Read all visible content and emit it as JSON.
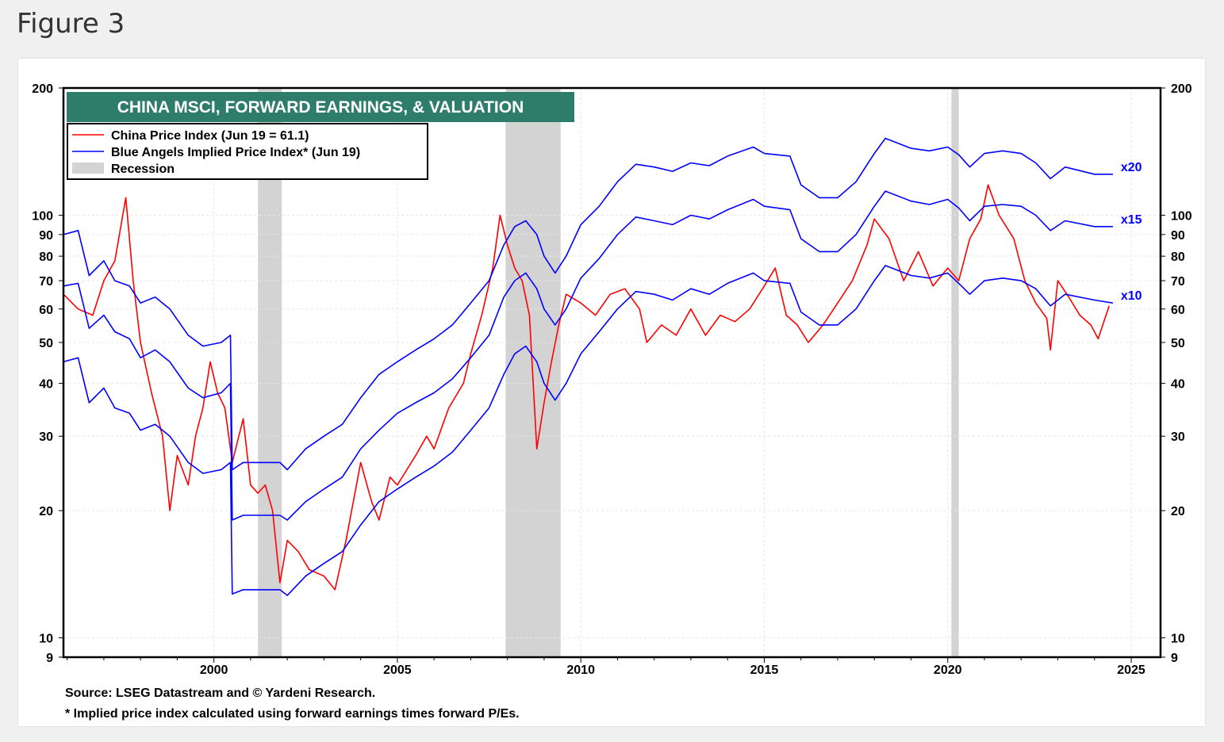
{
  "figure_label": "Figure 3",
  "chart_data": {
    "type": "line",
    "title": "CHINA MSCI, FORWARD EARNINGS, & VALUATION",
    "y_scale": "log",
    "ylim": [
      9,
      200
    ],
    "xlim": [
      1995.9,
      2025.8
    ],
    "y_ticks": [
      200,
      100,
      90,
      80,
      70,
      60,
      50,
      40,
      30,
      20,
      10,
      9
    ],
    "x_ticks": [
      2000,
      2005,
      2010,
      2015,
      2020,
      2025
    ],
    "legend": [
      {
        "label": "China Price Index (Jun 19 = 61.1)",
        "color": "#ff0000",
        "kind": "line"
      },
      {
        "label": "Blue Angels Implied Price Index* (Jun 19)",
        "color": "#0000ff",
        "kind": "line"
      },
      {
        "label": "Recession",
        "color": "#d3d3d3",
        "kind": "band"
      }
    ],
    "recessions": [
      [
        2001.2,
        2001.85
      ],
      [
        2007.95,
        2009.45
      ],
      [
        2020.1,
        2020.3
      ]
    ],
    "series": [
      {
        "name": "China Price Index",
        "color": "#ff0000",
        "points": [
          [
            1995.9,
            65
          ],
          [
            1996.3,
            60
          ],
          [
            1996.7,
            58
          ],
          [
            1997.0,
            70
          ],
          [
            1997.3,
            78
          ],
          [
            1997.6,
            110
          ],
          [
            1997.8,
            70
          ],
          [
            1998.0,
            50
          ],
          [
            1998.3,
            38
          ],
          [
            1998.6,
            30
          ],
          [
            1998.8,
            20
          ],
          [
            1999.0,
            27
          ],
          [
            1999.3,
            23
          ],
          [
            1999.5,
            30
          ],
          [
            1999.7,
            35
          ],
          [
            1999.9,
            45
          ],
          [
            2000.1,
            38
          ],
          [
            2000.3,
            35
          ],
          [
            2000.5,
            26
          ],
          [
            2000.8,
            33
          ],
          [
            2001.0,
            23
          ],
          [
            2001.2,
            22
          ],
          [
            2001.4,
            23
          ],
          [
            2001.6,
            20
          ],
          [
            2001.8,
            13.5
          ],
          [
            2002.0,
            17
          ],
          [
            2002.3,
            16
          ],
          [
            2002.6,
            14.5
          ],
          [
            2003.0,
            14
          ],
          [
            2003.3,
            13
          ],
          [
            2003.6,
            17
          ],
          [
            2004.0,
            26
          ],
          [
            2004.3,
            21
          ],
          [
            2004.5,
            19
          ],
          [
            2004.8,
            24
          ],
          [
            2005.0,
            23
          ],
          [
            2005.5,
            27
          ],
          [
            2005.8,
            30
          ],
          [
            2006.0,
            28
          ],
          [
            2006.4,
            35
          ],
          [
            2006.8,
            40
          ],
          [
            2007.0,
            47
          ],
          [
            2007.3,
            58
          ],
          [
            2007.6,
            75
          ],
          [
            2007.8,
            100
          ],
          [
            2008.0,
            85
          ],
          [
            2008.2,
            75
          ],
          [
            2008.4,
            70
          ],
          [
            2008.6,
            58
          ],
          [
            2008.8,
            28
          ],
          [
            2009.0,
            36
          ],
          [
            2009.2,
            45
          ],
          [
            2009.4,
            55
          ],
          [
            2009.6,
            65
          ],
          [
            2010.0,
            62
          ],
          [
            2010.4,
            58
          ],
          [
            2010.8,
            65
          ],
          [
            2011.2,
            67
          ],
          [
            2011.6,
            60
          ],
          [
            2011.8,
            50
          ],
          [
            2012.2,
            55
          ],
          [
            2012.6,
            52
          ],
          [
            2013.0,
            60
          ],
          [
            2013.4,
            52
          ],
          [
            2013.8,
            58
          ],
          [
            2014.2,
            56
          ],
          [
            2014.6,
            60
          ],
          [
            2015.0,
            68
          ],
          [
            2015.3,
            75
          ],
          [
            2015.6,
            58
          ],
          [
            2015.9,
            55
          ],
          [
            2016.2,
            50
          ],
          [
            2016.6,
            55
          ],
          [
            2017.0,
            62
          ],
          [
            2017.4,
            70
          ],
          [
            2017.8,
            85
          ],
          [
            2018.0,
            98
          ],
          [
            2018.4,
            88
          ],
          [
            2018.8,
            70
          ],
          [
            2019.2,
            82
          ],
          [
            2019.6,
            68
          ],
          [
            2020.0,
            75
          ],
          [
            2020.3,
            70
          ],
          [
            2020.6,
            88
          ],
          [
            2020.9,
            98
          ],
          [
            2021.1,
            118
          ],
          [
            2021.4,
            100
          ],
          [
            2021.8,
            88
          ],
          [
            2022.1,
            70
          ],
          [
            2022.4,
            62
          ],
          [
            2022.7,
            57
          ],
          [
            2022.8,
            48
          ],
          [
            2023.0,
            70
          ],
          [
            2023.3,
            64
          ],
          [
            2023.6,
            58
          ],
          [
            2023.9,
            55
          ],
          [
            2024.1,
            51
          ],
          [
            2024.4,
            61
          ]
        ]
      },
      {
        "name": "Blue Angels x20",
        "color": "#0000ff",
        "label": "x20",
        "points": [
          [
            1995.9,
            90
          ],
          [
            1996.3,
            92
          ],
          [
            1996.6,
            72
          ],
          [
            1997.0,
            78
          ],
          [
            1997.3,
            70
          ],
          [
            1997.7,
            68
          ],
          [
            1998.0,
            62
          ],
          [
            1998.4,
            64
          ],
          [
            1998.8,
            60
          ],
          [
            1999.3,
            52
          ],
          [
            1999.7,
            49
          ],
          [
            2000.2,
            50
          ],
          [
            2000.45,
            52
          ],
          [
            2000.5,
            25
          ],
          [
            2000.8,
            26
          ],
          [
            2001.0,
            26
          ],
          [
            2001.8,
            26
          ],
          [
            2002.0,
            25
          ],
          [
            2002.5,
            28
          ],
          [
            2003.0,
            30
          ],
          [
            2003.5,
            32
          ],
          [
            2004.0,
            37
          ],
          [
            2004.5,
            42
          ],
          [
            2005.0,
            45
          ],
          [
            2005.5,
            48
          ],
          [
            2006.0,
            51
          ],
          [
            2006.5,
            55
          ],
          [
            2007.0,
            62
          ],
          [
            2007.5,
            70
          ],
          [
            2007.9,
            85
          ],
          [
            2008.2,
            94
          ],
          [
            2008.5,
            97
          ],
          [
            2008.8,
            90
          ],
          [
            2009.0,
            80
          ],
          [
            2009.3,
            73
          ],
          [
            2009.6,
            80
          ],
          [
            2010.0,
            95
          ],
          [
            2010.5,
            105
          ],
          [
            2011.0,
            120
          ],
          [
            2011.5,
            132
          ],
          [
            2012.0,
            130
          ],
          [
            2012.5,
            127
          ],
          [
            2013.0,
            133
          ],
          [
            2013.5,
            131
          ],
          [
            2014.0,
            138
          ],
          [
            2014.7,
            145
          ],
          [
            2015.0,
            140
          ],
          [
            2015.7,
            138
          ],
          [
            2016.0,
            118
          ],
          [
            2016.5,
            110
          ],
          [
            2017.0,
            110
          ],
          [
            2017.5,
            120
          ],
          [
            2018.0,
            140
          ],
          [
            2018.3,
            152
          ],
          [
            2019.0,
            144
          ],
          [
            2019.5,
            142
          ],
          [
            2020.0,
            145
          ],
          [
            2020.3,
            139
          ],
          [
            2020.6,
            130
          ],
          [
            2021.0,
            140
          ],
          [
            2021.5,
            142
          ],
          [
            2022.0,
            140
          ],
          [
            2022.4,
            133
          ],
          [
            2022.8,
            122
          ],
          [
            2023.2,
            130
          ],
          [
            2024.0,
            125
          ],
          [
            2024.5,
            125
          ]
        ]
      },
      {
        "name": "Blue Angels x15",
        "color": "#0000ff",
        "label": "x15",
        "points": [
          [
            1995.9,
            68
          ],
          [
            1996.3,
            69
          ],
          [
            1996.6,
            54
          ],
          [
            1997.0,
            58
          ],
          [
            1997.3,
            53
          ],
          [
            1997.7,
            51
          ],
          [
            1998.0,
            46
          ],
          [
            1998.4,
            48
          ],
          [
            1998.8,
            45
          ],
          [
            1999.3,
            39
          ],
          [
            1999.7,
            37
          ],
          [
            2000.2,
            38
          ],
          [
            2000.45,
            40
          ],
          [
            2000.5,
            19
          ],
          [
            2000.8,
            19.5
          ],
          [
            2001.0,
            19.5
          ],
          [
            2001.8,
            19.5
          ],
          [
            2002.0,
            19
          ],
          [
            2002.5,
            21
          ],
          [
            2003.0,
            22.5
          ],
          [
            2003.5,
            24
          ],
          [
            2004.0,
            28
          ],
          [
            2004.5,
            31
          ],
          [
            2005.0,
            34
          ],
          [
            2005.5,
            36
          ],
          [
            2006.0,
            38
          ],
          [
            2006.5,
            41
          ],
          [
            2007.0,
            46
          ],
          [
            2007.5,
            52
          ],
          [
            2007.9,
            64
          ],
          [
            2008.2,
            70
          ],
          [
            2008.5,
            73
          ],
          [
            2008.8,
            67
          ],
          [
            2009.0,
            60
          ],
          [
            2009.3,
            55
          ],
          [
            2009.6,
            60
          ],
          [
            2010.0,
            71
          ],
          [
            2010.5,
            79
          ],
          [
            2011.0,
            90
          ],
          [
            2011.5,
            99
          ],
          [
            2012.0,
            97
          ],
          [
            2012.5,
            95
          ],
          [
            2013.0,
            100
          ],
          [
            2013.5,
            98
          ],
          [
            2014.0,
            103
          ],
          [
            2014.7,
            109
          ],
          [
            2015.0,
            105
          ],
          [
            2015.7,
            103
          ],
          [
            2016.0,
            88
          ],
          [
            2016.5,
            82
          ],
          [
            2017.0,
            82
          ],
          [
            2017.5,
            90
          ],
          [
            2018.0,
            105
          ],
          [
            2018.3,
            114
          ],
          [
            2019.0,
            108
          ],
          [
            2019.5,
            106
          ],
          [
            2020.0,
            109
          ],
          [
            2020.3,
            104
          ],
          [
            2020.6,
            97
          ],
          [
            2021.0,
            105
          ],
          [
            2021.5,
            106
          ],
          [
            2022.0,
            105
          ],
          [
            2022.4,
            100
          ],
          [
            2022.8,
            92
          ],
          [
            2023.2,
            97
          ],
          [
            2024.0,
            94
          ],
          [
            2024.5,
            94
          ]
        ]
      },
      {
        "name": "Blue Angels x10",
        "color": "#0000ff",
        "label": "x10",
        "points": [
          [
            1995.9,
            45
          ],
          [
            1996.3,
            46
          ],
          [
            1996.6,
            36
          ],
          [
            1997.0,
            39
          ],
          [
            1997.3,
            35
          ],
          [
            1997.7,
            34
          ],
          [
            1998.0,
            31
          ],
          [
            1998.4,
            32
          ],
          [
            1998.8,
            30
          ],
          [
            1999.3,
            26
          ],
          [
            1999.7,
            24.5
          ],
          [
            2000.2,
            25
          ],
          [
            2000.45,
            26
          ],
          [
            2000.5,
            12.7
          ],
          [
            2000.8,
            13
          ],
          [
            2001.0,
            13
          ],
          [
            2001.8,
            13
          ],
          [
            2002.0,
            12.6
          ],
          [
            2002.5,
            14
          ],
          [
            2003.0,
            15
          ],
          [
            2003.5,
            16
          ],
          [
            2004.0,
            18.5
          ],
          [
            2004.5,
            21
          ],
          [
            2005.0,
            22.5
          ],
          [
            2005.5,
            24
          ],
          [
            2006.0,
            25.5
          ],
          [
            2006.5,
            27.5
          ],
          [
            2007.0,
            31
          ],
          [
            2007.5,
            35
          ],
          [
            2007.9,
            42
          ],
          [
            2008.2,
            47
          ],
          [
            2008.5,
            49
          ],
          [
            2008.8,
            45
          ],
          [
            2009.0,
            40
          ],
          [
            2009.3,
            36.5
          ],
          [
            2009.6,
            40
          ],
          [
            2010.0,
            47
          ],
          [
            2010.5,
            53
          ],
          [
            2011.0,
            60
          ],
          [
            2011.5,
            66
          ],
          [
            2012.0,
            65
          ],
          [
            2012.5,
            63
          ],
          [
            2013.0,
            67
          ],
          [
            2013.5,
            65
          ],
          [
            2014.0,
            69
          ],
          [
            2014.7,
            73
          ],
          [
            2015.0,
            70
          ],
          [
            2015.7,
            69
          ],
          [
            2016.0,
            59
          ],
          [
            2016.5,
            55
          ],
          [
            2017.0,
            55
          ],
          [
            2017.5,
            60
          ],
          [
            2018.0,
            70
          ],
          [
            2018.3,
            76
          ],
          [
            2019.0,
            72
          ],
          [
            2019.5,
            71
          ],
          [
            2020.0,
            73
          ],
          [
            2020.3,
            69
          ],
          [
            2020.6,
            65
          ],
          [
            2021.0,
            70
          ],
          [
            2021.5,
            71
          ],
          [
            2022.0,
            70
          ],
          [
            2022.4,
            67
          ],
          [
            2022.8,
            61
          ],
          [
            2023.2,
            65
          ],
          [
            2024.0,
            63
          ],
          [
            2024.5,
            62
          ]
        ]
      }
    ]
  },
  "source_lines": [
    "Source: LSEG Datastream and © Yardeni Research.",
    "* Implied price index calculated using forward earnings times forward P/Es."
  ],
  "colors": {
    "price": "#ff0000",
    "implied": "#0000ff",
    "recession": "#d3d3d3",
    "title_band": "#2e7d6b"
  }
}
